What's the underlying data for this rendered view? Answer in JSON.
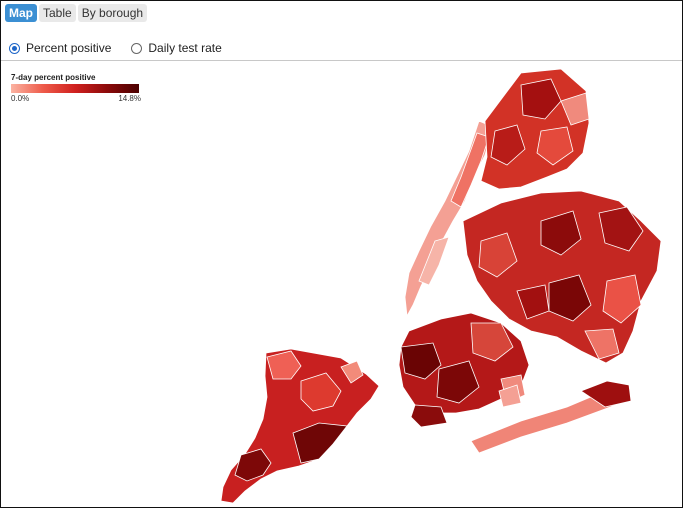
{
  "tabs": [
    {
      "label": "Map",
      "active": true
    },
    {
      "label": "Table",
      "active": false
    },
    {
      "label": "By borough",
      "active": false
    }
  ],
  "metric_options": [
    {
      "label": "Percent positive",
      "checked": true
    },
    {
      "label": "Daily test rate",
      "checked": false
    }
  ],
  "legend": {
    "title": "7-day percent positive",
    "min_label": "0.0%",
    "max_label": "14.8%",
    "color_low": "#fbb3a2",
    "color_high": "#4b0000"
  },
  "map": {
    "type": "choropleth",
    "regions": [
      {
        "name": "Staten Island",
        "level": "high"
      },
      {
        "name": "Manhattan",
        "level": "low"
      },
      {
        "name": "Bronx",
        "level": "medium"
      },
      {
        "name": "Queens",
        "level": "medium-high"
      },
      {
        "name": "Brooklyn",
        "level": "high"
      }
    ]
  }
}
